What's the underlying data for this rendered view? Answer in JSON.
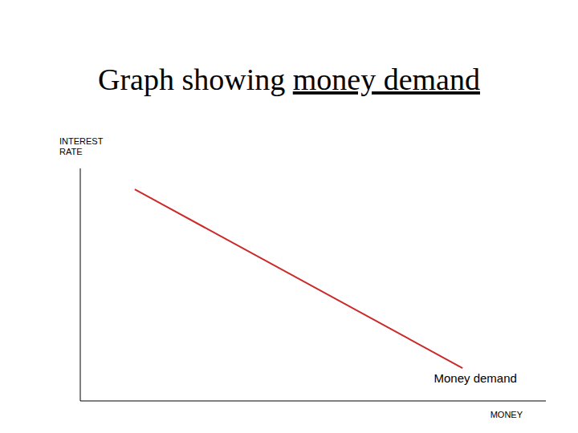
{
  "chart_data": {
    "type": "line",
    "title": "Graph showing money demand",
    "x_label": "MONEY",
    "y_label": "INTEREST RATE",
    "x": [
      11.7,
      82.1
    ],
    "series": [
      {
        "name": "Money demand",
        "color": "#cc2a2a",
        "values": [
          91,
          14.1
        ]
      }
    ],
    "xlim": [
      0,
      100
    ],
    "ylim": [
      0,
      100
    ],
    "tick_labels": false,
    "grid": false
  }
}
